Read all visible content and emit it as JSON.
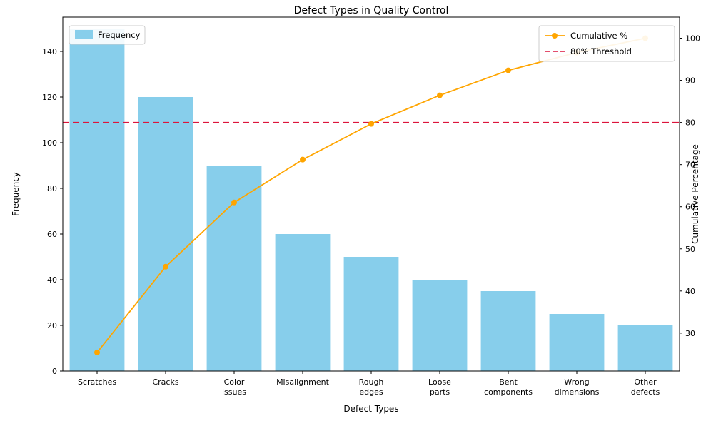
{
  "chart_data": {
    "type": "bar",
    "subtype": "pareto",
    "title": "Defect Types in Quality Control",
    "xlabel": "Defect Types",
    "ylabel_left": "Frequency",
    "ylabel_right": "Cumulative Percentage",
    "categories": [
      "Scratches",
      "Cracks",
      "Color\nissues",
      "Misalignment",
      "Rough\nedges",
      "Loose\nparts",
      "Bent\ncomponents",
      "Wrong\ndimensions",
      "Other\ndefects"
    ],
    "series": [
      {
        "name": "Frequency",
        "type": "bar",
        "axis": "left",
        "color": "#87CEEB",
        "values": [
          150,
          120,
          90,
          60,
          50,
          40,
          35,
          25,
          20
        ]
      },
      {
        "name": "Cumulative %",
        "type": "line",
        "axis": "right",
        "color": "#FFA500",
        "values": [
          25.42,
          45.76,
          61.02,
          71.19,
          79.66,
          86.44,
          92.37,
          96.61,
          100.0
        ]
      }
    ],
    "threshold": {
      "name": "80% Threshold",
      "value": 80,
      "color": "#DC143C",
      "style": "dashed"
    },
    "left_axis": {
      "ticks": [
        0,
        20,
        40,
        60,
        80,
        100,
        120,
        140
      ],
      "lim": [
        0,
        155
      ]
    },
    "right_axis": {
      "ticks": [
        30,
        40,
        50,
        60,
        70,
        80,
        90,
        100
      ],
      "lim": [
        21,
        105
      ]
    },
    "grid": false,
    "legend_left_position": "upper left",
    "legend_right_position": "upper right"
  }
}
